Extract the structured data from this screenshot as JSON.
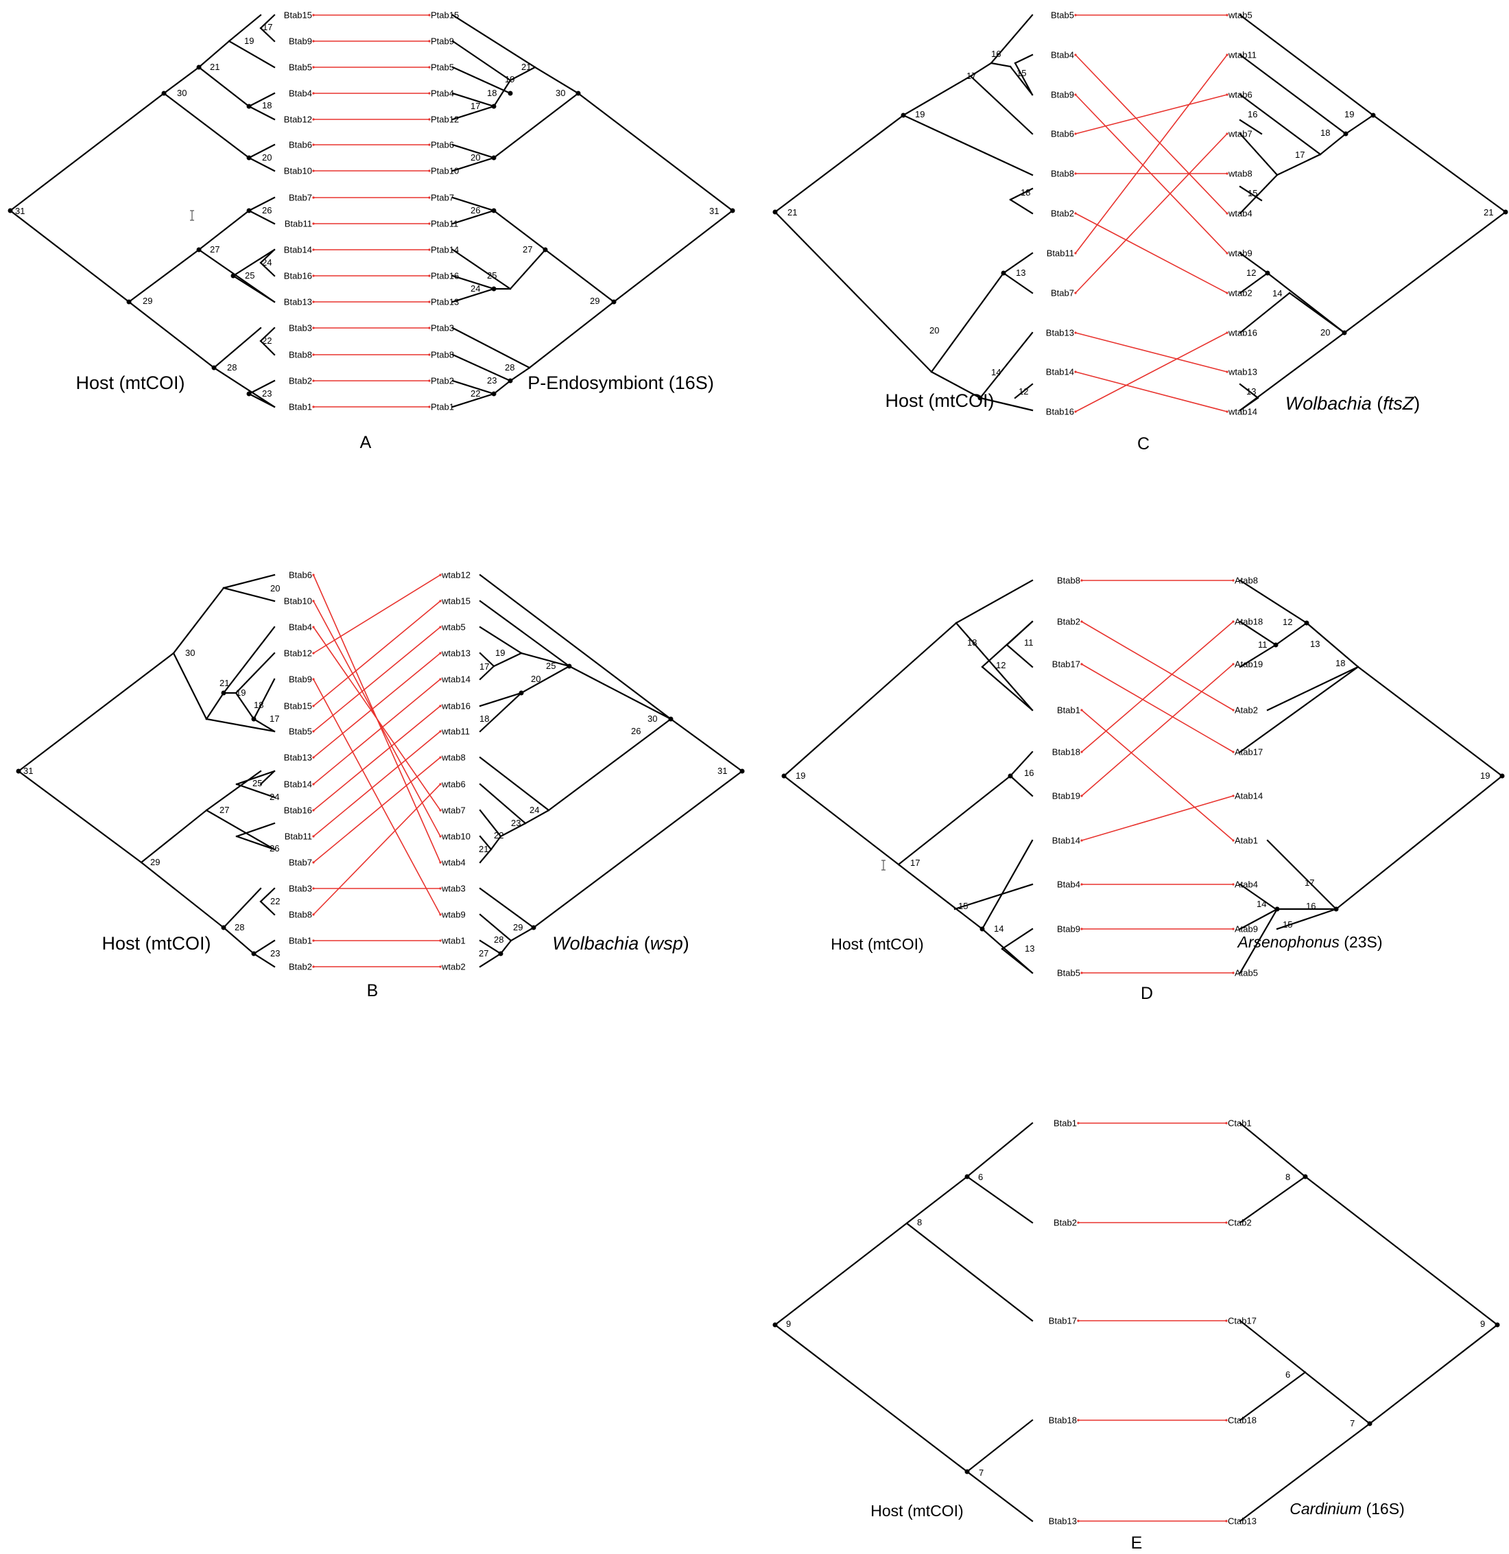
{
  "panels": [
    {
      "id": "A",
      "letter": "A",
      "host_label": "Host (mtCOI)",
      "symbiont_label": [
        {
          "t": "P-Endosymbiont (16S)",
          "i": false
        }
      ],
      "host_leaves": [
        "Btab15",
        "Btab9",
        "Btab5",
        "Btab4",
        "Btab12",
        "Btab6",
        "Btab10",
        "Btab7",
        "Btab11",
        "Btab14",
        "Btab16",
        "Btab13",
        "Btab3",
        "Btab8",
        "Btab2",
        "Btab1"
      ],
      "symbiont_leaves": [
        "Ptab15",
        "Ptab9",
        "Ptab5",
        "Ptab4",
        "Ptab12",
        "Ptab6",
        "Ptab10",
        "Ptab7",
        "Ptab11",
        "Ptab14",
        "Ptab16",
        "Ptab13",
        "Ptab3",
        "Ptab8",
        "Ptab2",
        "Ptab1"
      ],
      "host_nodes": [
        "31",
        "30",
        "29",
        "21",
        "19",
        "17",
        "18",
        "20",
        "27",
        "26",
        "25",
        "24",
        "28",
        "22",
        "23"
      ],
      "symbiont_nodes": [
        "31",
        "30",
        "21",
        "19",
        "18",
        "17",
        "20",
        "29",
        "27",
        "26",
        "25",
        "24",
        "28",
        "23",
        "22"
      ]
    },
    {
      "id": "B",
      "letter": "B",
      "host_label": "Host (mtCOI)",
      "symbiont_label": [
        {
          "t": "Wolbachia",
          "i": true
        },
        {
          "t": " (",
          "i": false
        },
        {
          "t": "wsp",
          "i": true
        },
        {
          "t": ")",
          "i": false
        }
      ],
      "host_leaves": [
        "Btab6",
        "Btab10",
        "Btab4",
        "Btab12",
        "Btab9",
        "Btab15",
        "Btab5",
        "Btab13",
        "Btab14",
        "Btab16",
        "Btab11",
        "Btab7",
        "Btab3",
        "Btab8",
        "Btab1",
        "Btab2"
      ],
      "symbiont_leaves": [
        "wtab12",
        "wtab15",
        "wtab5",
        "wtab13",
        "wtab14",
        "wtab16",
        "wtab11",
        "wtab8",
        "wtab6",
        "wtab7",
        "wtab10",
        "wtab4",
        "wtab3",
        "wtab9",
        "wtab1",
        "wtab2"
      ],
      "host_nodes": [
        "31",
        "30",
        "20",
        "21",
        "19",
        "18",
        "17",
        "29",
        "27",
        "25",
        "24",
        "26",
        "28",
        "22",
        "23"
      ],
      "symbiont_nodes": [
        "31",
        "30",
        "26",
        "25",
        "19",
        "17",
        "20",
        "18",
        "24",
        "23",
        "22",
        "21",
        "29",
        "28",
        "27"
      ]
    },
    {
      "id": "C",
      "letter": "C",
      "host_label": "Host (mtCOI)",
      "symbiont_label": [
        {
          "t": "Wolbachia",
          "i": true
        },
        {
          "t": " (",
          "i": false
        },
        {
          "t": "ftsZ",
          "i": true
        },
        {
          "t": ")",
          "i": false
        }
      ],
      "host_leaves": [
        "Btab5",
        "Btab4",
        "Btab9",
        "Btab6",
        "Btab8",
        "Btab2",
        "Btab11",
        "Btab7",
        "Btab13",
        "Btab14",
        "Btab16"
      ],
      "symbiont_leaves": [
        "wtab5",
        "wtab11",
        "wtab6",
        "wtab7",
        "wtab8",
        "wtab4",
        "wtab9",
        "wtab2",
        "wtab16",
        "wtab13",
        "wtab14"
      ],
      "host_nodes": [
        "21",
        "19",
        "17",
        "16",
        "15",
        "18",
        "20",
        "13",
        "14",
        "12"
      ],
      "symbiont_nodes": [
        "21",
        "19",
        "18",
        "16",
        "17",
        "15",
        "20",
        "12",
        "14",
        "13"
      ]
    },
    {
      "id": "D",
      "letter": "D",
      "host_label": "Host (mtCOI)",
      "symbiont_label": [
        {
          "t": "Arsenophonus",
          "i": true
        },
        {
          "t": " (23S)",
          "i": false
        }
      ],
      "host_leaves": [
        "Btab8",
        "Btab2",
        "Btab17",
        "Btab1",
        "Btab18",
        "Btab19",
        "Btab14",
        "Btab4",
        "Btab9",
        "Btab5"
      ],
      "symbiont_leaves": [
        "Atab8",
        "Atab18",
        "Atab19",
        "Atab2",
        "Atab17",
        "Atab14",
        "Atab1",
        "Atab4",
        "Atab9",
        "Atab5"
      ],
      "host_nodes": [
        "19",
        "18",
        "11",
        "12",
        "17",
        "16",
        "15",
        "14",
        "13"
      ],
      "symbiont_nodes": [
        "19",
        "18",
        "12",
        "11",
        "13",
        "17",
        "16",
        "14",
        "15"
      ]
    },
    {
      "id": "E",
      "letter": "E",
      "host_label": "Host (mtCOI)",
      "symbiont_label": [
        {
          "t": "Cardinium",
          "i": true
        },
        {
          "t": " (16S)",
          "i": false
        }
      ],
      "host_leaves": [
        "Btab1",
        "Btab2",
        "Btab17",
        "Btab18",
        "Btab13"
      ],
      "symbiont_leaves": [
        "Ctab1",
        "Ctab2",
        "Ctab17",
        "Ctab18",
        "Ctab13"
      ],
      "host_nodes": [
        "9",
        "8",
        "6",
        "7"
      ],
      "symbiont_nodes": [
        "9",
        "8",
        "6",
        "7"
      ]
    }
  ]
}
